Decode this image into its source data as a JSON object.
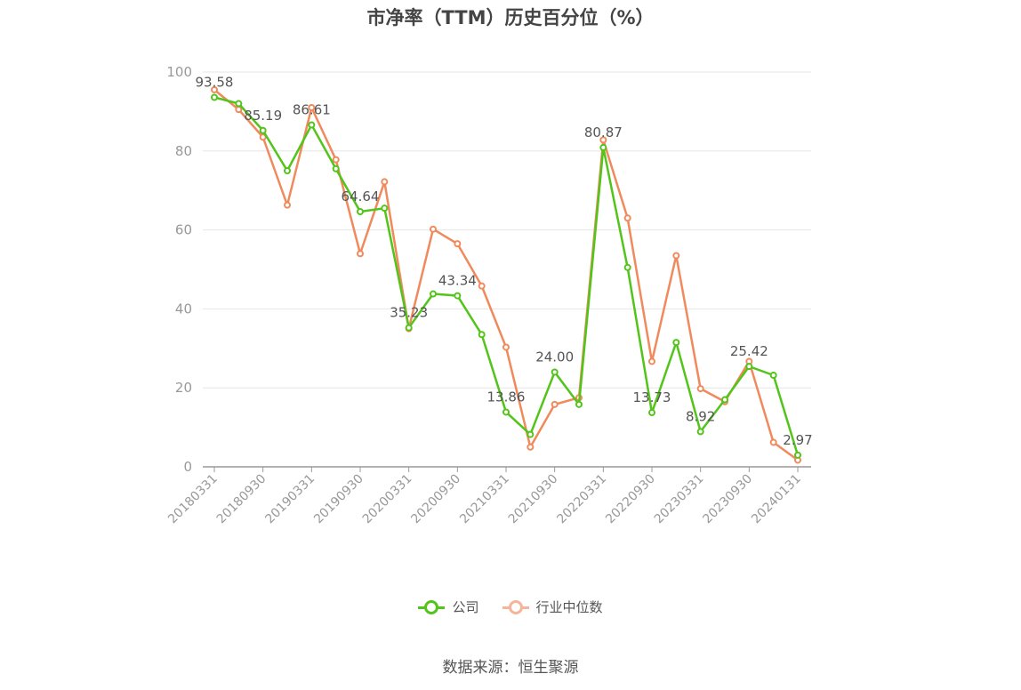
{
  "title": "市净率（TTM）历史百分位（%）",
  "source": "数据来源：恒生聚源",
  "colors": {
    "company": "#52c41a",
    "industry": "#f08a5d",
    "industry_legend": "#f5b59a",
    "grid": "#e6e6e6",
    "axis": "#999999"
  },
  "legend": {
    "company": "公司",
    "industry": "行业中位数"
  },
  "chart_data": {
    "type": "line",
    "title": "市净率（TTM）历史百分位（%）",
    "ylim": [
      0,
      100
    ],
    "yticks": [
      0,
      20,
      40,
      60,
      80,
      100
    ],
    "grid": true,
    "legend_position": "bottom",
    "xtick_labels": [
      "20180331",
      "20180930",
      "20190331",
      "20190930",
      "20200331",
      "20200930",
      "20210331",
      "20210930",
      "20220331",
      "20220930",
      "20230331",
      "20230930",
      "20240131"
    ],
    "x": [
      "20180331",
      "20180630",
      "20180930",
      "20181231",
      "20190331",
      "20190630",
      "20190930",
      "20191231",
      "20200331",
      "20200630",
      "20200930",
      "20201231",
      "20210331",
      "20210630",
      "20210930",
      "20211231",
      "20220331",
      "20220630",
      "20220930",
      "20221231",
      "20230331",
      "20230630",
      "20230930",
      "20231231",
      "20240131"
    ],
    "series": [
      {
        "name": "公司",
        "values": [
          93.58,
          92.0,
          85.19,
          75.0,
          86.61,
          75.5,
          64.64,
          65.5,
          35.23,
          43.8,
          43.34,
          33.5,
          13.86,
          8.2,
          24.0,
          15.8,
          80.87,
          50.5,
          13.73,
          31.5,
          8.92,
          17.0,
          25.42,
          23.2,
          2.97
        ]
      },
      {
        "name": "行业中位数",
        "values": [
          95.5,
          90.5,
          83.5,
          66.3,
          91.0,
          77.8,
          54.0,
          72.2,
          35.0,
          60.2,
          56.5,
          45.8,
          30.3,
          5.0,
          15.8,
          17.5,
          82.8,
          63.0,
          26.7,
          53.5,
          19.8,
          16.5,
          26.7,
          6.2,
          1.7
        ]
      }
    ],
    "data_labels": [
      {
        "index": 0,
        "text": "93.58"
      },
      {
        "index": 2,
        "text": "85.19"
      },
      {
        "index": 4,
        "text": "86.61"
      },
      {
        "index": 6,
        "text": "64.64"
      },
      {
        "index": 8,
        "text": "35.23"
      },
      {
        "index": 10,
        "text": "43.34"
      },
      {
        "index": 12,
        "text": "13.86"
      },
      {
        "index": 14,
        "text": "24.00"
      },
      {
        "index": 16,
        "text": "80.87"
      },
      {
        "index": 18,
        "text": "13.73"
      },
      {
        "index": 20,
        "text": "8.92"
      },
      {
        "index": 22,
        "text": "25.42"
      },
      {
        "index": 24,
        "text": "2.97"
      }
    ]
  }
}
